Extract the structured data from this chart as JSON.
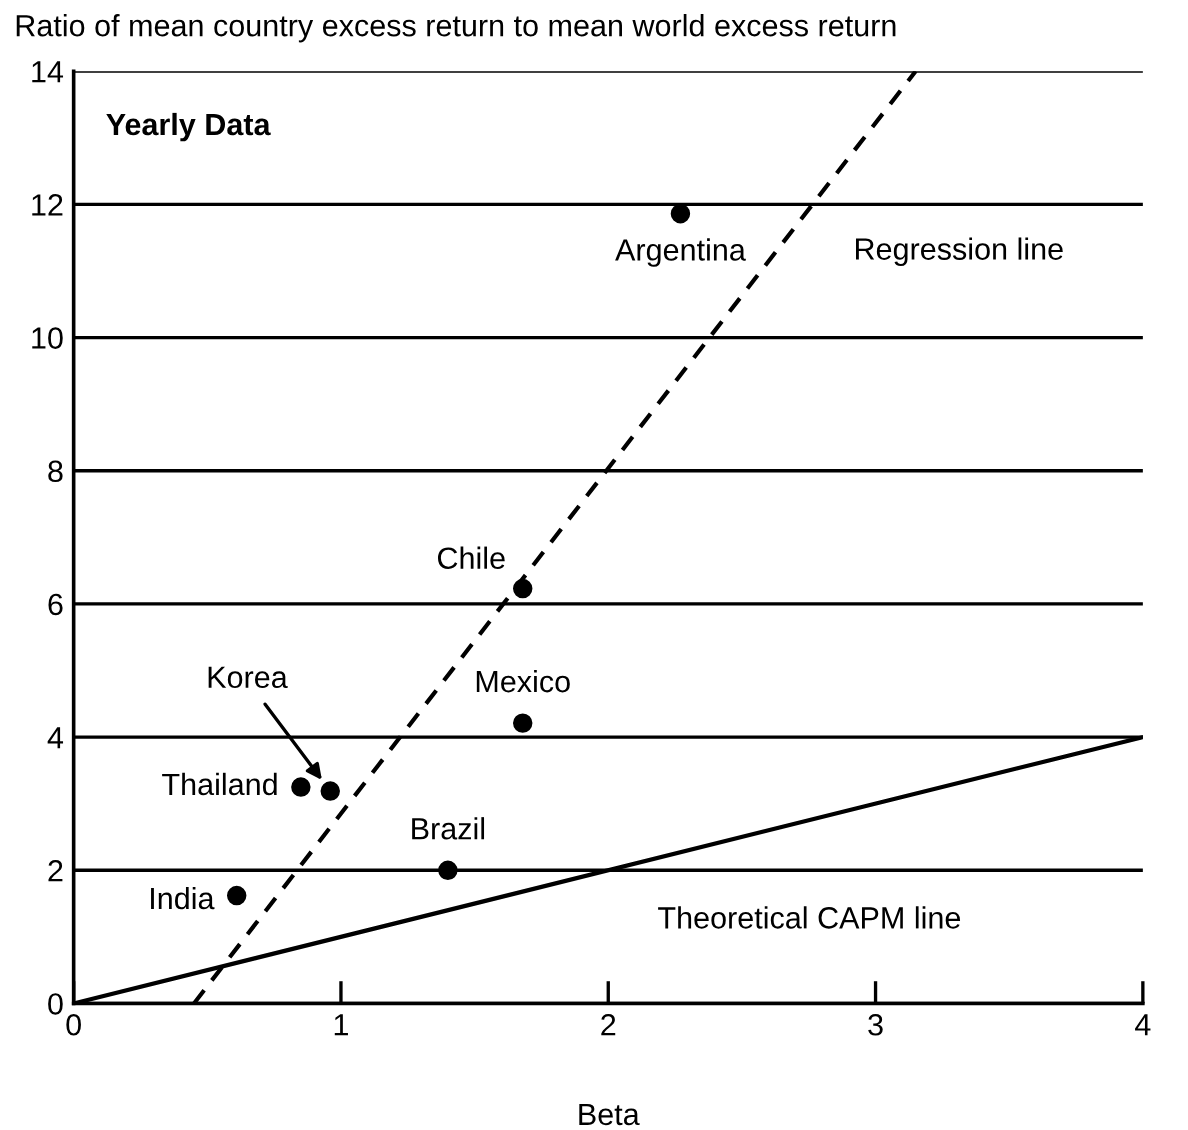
{
  "chart_data": {
    "type": "scatter",
    "title": "Yearly Data",
    "ylabel": "Ratio of mean country excess return to mean world excess return",
    "xlabel": "Beta",
    "xlim": [
      0,
      4
    ],
    "xticks": [
      0,
      1,
      2,
      3,
      4
    ],
    "ylim": [
      0,
      14
    ],
    "yticks": [
      0,
      2,
      4,
      6,
      8,
      10,
      12,
      14
    ],
    "grid": "y",
    "legend": false,
    "series": [
      {
        "color": "#000000",
        "marker": "circle",
        "x": [
          2.27,
          1.68,
          1.68,
          0.85,
          0.96,
          1.4,
          0.61
        ],
        "values": [
          11.86,
          6.23,
          4.21,
          3.25,
          3.19,
          2.0,
          1.62
        ]
      },
      {
        "type": "line",
        "name": "Regression line",
        "color": "#000000",
        "line_style": "dashed",
        "marker": "none",
        "x": [
          0.45,
          3.15
        ],
        "values": [
          0,
          14
        ]
      },
      {
        "type": "line",
        "name": "Theoretical CAPM line",
        "color": "#000000",
        "line_style": "solid",
        "marker": "none",
        "x": [
          0,
          4
        ],
        "values": [
          0,
          4
        ]
      }
    ],
    "annotations": [
      {
        "text": "Argentina",
        "x": 2.27,
        "y": 11.86
      },
      {
        "text": "Chile",
        "x": 1.68,
        "y": 6.23
      },
      {
        "text": "Mexico",
        "x": 1.68,
        "y": 4.21
      },
      {
        "text": "Thailand",
        "x": 0.85,
        "y": 3.25
      },
      {
        "text": "Korea",
        "x": 0.96,
        "y": 3.19
      },
      {
        "text": "Brazil",
        "x": 1.4,
        "y": 2.0
      },
      {
        "text": "India",
        "x": 0.61,
        "y": 1.62
      }
    ]
  }
}
